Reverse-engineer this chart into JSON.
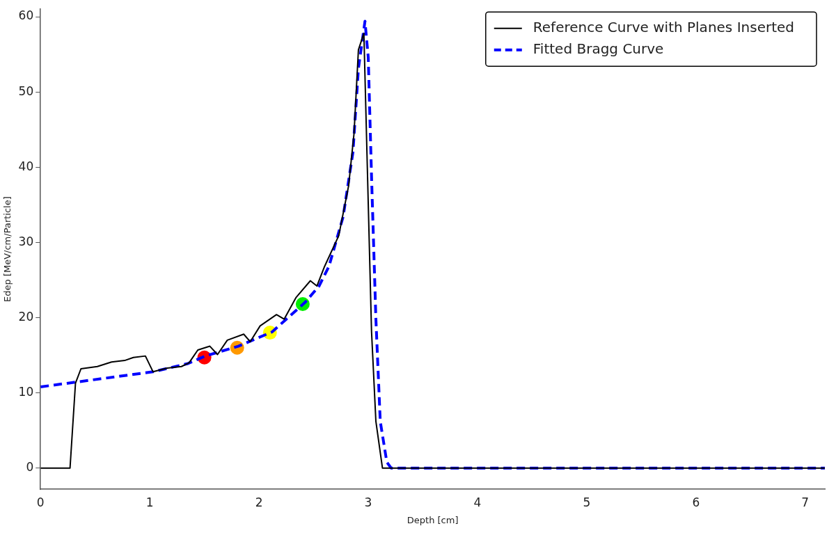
{
  "chart_data": {
    "type": "line",
    "xlabel": "Depth [cm]",
    "ylabel": "Edep [MeV/cm/Particle]",
    "xlim": [
      0,
      7.18
    ],
    "xticks": [
      0,
      1,
      2,
      3,
      4,
      5,
      6,
      7
    ],
    "ylim": [
      -2.8,
      61
    ],
    "yticks": [
      0,
      10,
      20,
      30,
      40,
      50,
      60
    ],
    "grid": false,
    "legend": "top right",
    "series": [
      {
        "name": "Reference Curve with Planes Inserted",
        "color": "#000000",
        "line_style": "solid",
        "x": [
          0,
          0.27,
          0.32,
          0.37,
          0.52,
          0.65,
          0.77,
          0.85,
          0.96,
          1.03,
          1.16,
          1.29,
          1.36,
          1.44,
          1.55,
          1.62,
          1.71,
          1.86,
          1.92,
          2.01,
          2.16,
          2.23,
          2.34,
          2.47,
          2.53,
          2.6,
          2.73,
          2.82,
          2.87,
          2.91,
          2.96,
          3.03,
          3.07,
          3.13,
          7.18
        ],
        "values": [
          0,
          0,
          11.3,
          13.2,
          13.5,
          14.1,
          14.3,
          14.7,
          14.9,
          12.8,
          13.3,
          13.5,
          14.0,
          15.7,
          16.2,
          15.1,
          17.0,
          17.8,
          16.8,
          18.9,
          20.4,
          19.8,
          22.7,
          24.9,
          24.2,
          26.8,
          30.9,
          37.5,
          44.5,
          55.6,
          57.8,
          18.2,
          6.2,
          0,
          0
        ]
      },
      {
        "name": "Fitted Bragg Curve",
        "color": "#0000ff",
        "line_style": "dashed",
        "x": [
          0,
          1.03,
          1.35,
          1.51,
          1.81,
          2.12,
          2.25,
          2.42,
          2.55,
          2.64,
          2.77,
          2.86,
          2.91,
          2.97,
          3.0,
          3.03,
          3.07,
          3.11,
          3.17,
          3.21,
          7.18
        ],
        "values": [
          10.8,
          12.8,
          13.9,
          14.9,
          16.2,
          18.1,
          19.8,
          22.0,
          24.2,
          26.8,
          33.4,
          42.0,
          53.1,
          59.4,
          54.6,
          38.8,
          19.8,
          6.2,
          0.8,
          0,
          0
        ]
      },
      {
        "type": "scatter",
        "marker": "circle",
        "colors": [
          "#ff0000",
          "#ff9900",
          "#ffff00",
          "#00ee00"
        ],
        "x": [
          1.5,
          1.8,
          2.1,
          2.4
        ],
        "values": [
          14.7,
          16.0,
          18.0,
          21.8
        ]
      }
    ]
  }
}
